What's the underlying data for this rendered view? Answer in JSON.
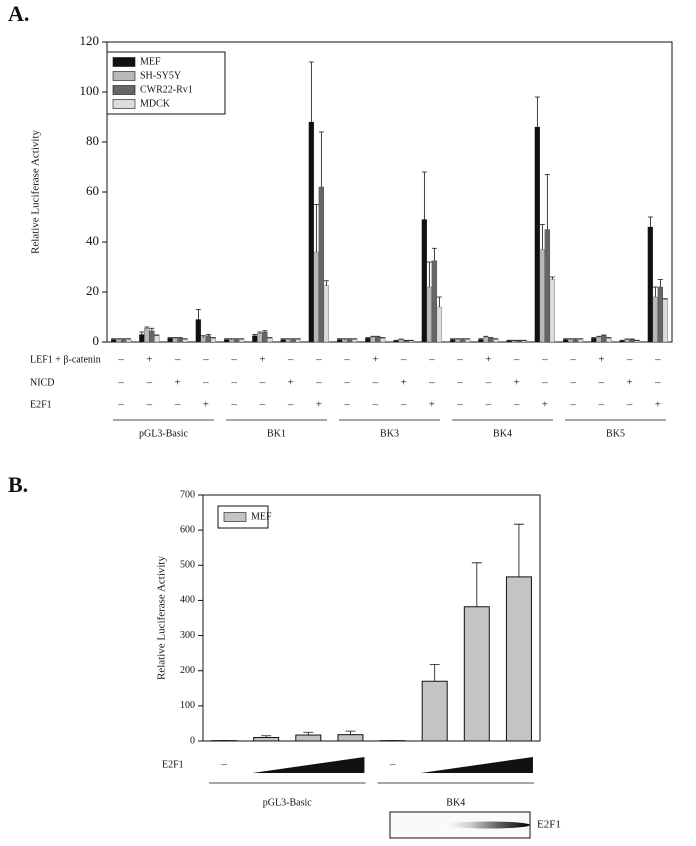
{
  "chart_data": [
    {
      "type": "bar",
      "panel_label": "A.",
      "ylabel": "Relative Luciferase Activity",
      "ylim": [
        0,
        120
      ],
      "yticks": [
        0,
        20,
        40,
        60,
        80,
        100,
        120
      ],
      "series": [
        {
          "name": "MEF",
          "color": "#111111",
          "values": [
            1,
            3,
            1.5,
            9,
            1,
            2.5,
            1,
            88,
            1,
            1.5,
            0.5,
            49,
            1,
            1,
            0.5,
            86,
            1,
            1.5,
            0.5,
            46
          ],
          "errors": [
            0.3,
            1,
            0.3,
            4,
            0.3,
            0.5,
            0.3,
            24,
            0.3,
            0.3,
            0.2,
            19,
            0.3,
            0.3,
            0.2,
            12,
            0.3,
            0.3,
            0.2,
            4
          ]
        },
        {
          "name": "SH-SY5Y",
          "color": "#b8b8b8",
          "values": [
            1,
            5.5,
            1.5,
            2,
            1,
            3.5,
            1,
            36,
            1,
            2,
            1,
            22,
            1,
            2,
            0.5,
            37,
            1,
            2,
            1,
            18
          ],
          "errors": [
            0.3,
            0.5,
            0.3,
            0.5,
            0.3,
            0.5,
            0.3,
            19,
            0.3,
            0.3,
            0.2,
            10,
            0.3,
            0.3,
            0.2,
            10,
            0.3,
            0.3,
            0.2,
            4
          ]
        },
        {
          "name": "CWR22-Rv1",
          "color": "#666666",
          "values": [
            1,
            4.5,
            1.5,
            2.5,
            1,
            4,
            1,
            62,
            1,
            2,
            0.5,
            32.5,
            1,
            1.5,
            0.5,
            45,
            1,
            2.5,
            1,
            22
          ],
          "errors": [
            0.3,
            1,
            0.3,
            0.5,
            0.3,
            0.5,
            0.3,
            22,
            0.3,
            0.3,
            0.2,
            5,
            0.3,
            0.3,
            0.2,
            22,
            0.3,
            0.3,
            0.2,
            3
          ]
        },
        {
          "name": "MDCK",
          "color": "#dddddd",
          "values": [
            1,
            2.5,
            1,
            1.5,
            1,
            1.5,
            1,
            22.5,
            1,
            1.5,
            0.5,
            14,
            1,
            1,
            0.5,
            25,
            1,
            1.5,
            0.5,
            17
          ],
          "errors": [
            0.3,
            0.3,
            0.3,
            0.3,
            0.3,
            0.3,
            0.3,
            2,
            0.3,
            0.3,
            0.2,
            4,
            0.3,
            0.3,
            0.2,
            1,
            0.3,
            0.3,
            0.2,
            0.3
          ]
        }
      ],
      "conditions": [
        {
          "label": "LEF1 + β-catenin",
          "signs": [
            "–",
            "+",
            "–",
            "–",
            "–",
            "+",
            "–",
            "–",
            "–",
            "+",
            "–",
            "–",
            "–",
            "+",
            "–",
            "–",
            "–",
            "+",
            "–",
            "–"
          ]
        },
        {
          "label": "NICD",
          "signs": [
            "–",
            "–",
            "+",
            "–",
            "–",
            "–",
            "+",
            "–",
            "–",
            "–",
            "+",
            "–",
            "–",
            "–",
            "+",
            "–",
            "–",
            "–",
            "+",
            "–"
          ]
        },
        {
          "label": "E2F1",
          "signs": [
            "–",
            "–",
            "–",
            "+",
            "–",
            "–",
            "–",
            "+",
            "–",
            "–",
            "–",
            "+",
            "–",
            "–",
            "–",
            "+",
            "–",
            "–",
            "–",
            "+"
          ]
        }
      ],
      "groups": [
        "pGL3-Basic",
        "BK1",
        "BK3",
        "BK4",
        "BK5"
      ]
    },
    {
      "type": "bar",
      "panel_label": "B.",
      "ylabel": "Relative Luciferase Activity",
      "ylim": [
        0,
        700
      ],
      "yticks": [
        0,
        100,
        200,
        300,
        400,
        500,
        600,
        700
      ],
      "series": [
        {
          "name": "MEF",
          "color": "#c4c4c4",
          "values": [
            1,
            10,
            17,
            18,
            1,
            170,
            382,
            467
          ],
          "errors": [
            0,
            5,
            8,
            10,
            0,
            48,
            125,
            150
          ]
        }
      ],
      "conditions": [
        {
          "label": "E2F1",
          "signs": [
            "–",
            null,
            null,
            null,
            "–",
            null,
            null,
            null
          ]
        }
      ],
      "groups": [
        "pGL3-Basic",
        "BK4"
      ],
      "blot_label": "E2F1"
    }
  ]
}
